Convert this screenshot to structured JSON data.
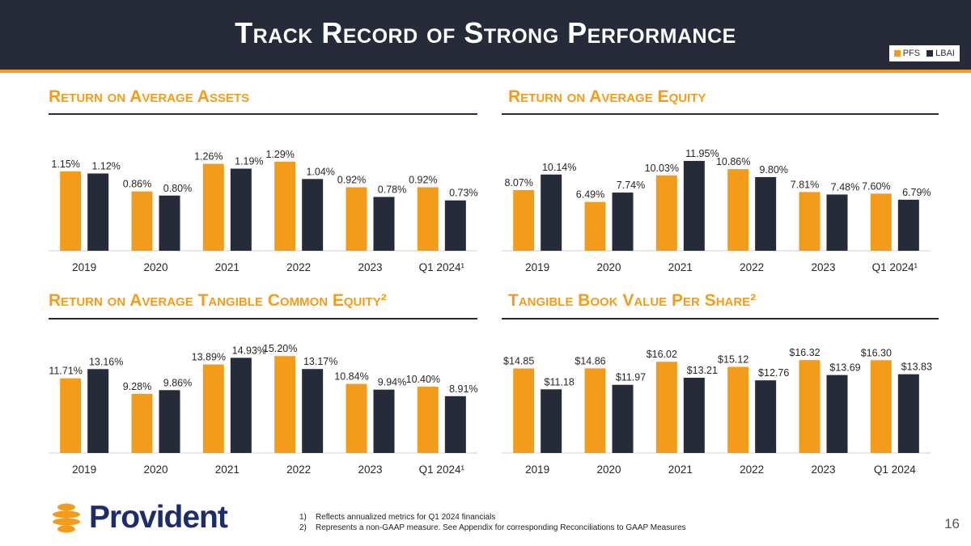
{
  "title": "Track Record of Strong Performance",
  "legend": {
    "pfs": "PFS",
    "lbai": "LBAI"
  },
  "colors": {
    "pfs": "#f39c1b",
    "lbai": "#262a39",
    "header_bg": "#262a39",
    "accent": "#f39c1b"
  },
  "brand": {
    "name": "Provident"
  },
  "footnotes": [
    {
      "num": "1)",
      "text": "Reflects annualized metrics for Q1 2024 financials"
    },
    {
      "num": "2)",
      "text": "Represents a non-GAAP measure. See Appendix for corresponding Reconciliations to GAAP Measures"
    }
  ],
  "page_number": "16",
  "chart_data": [
    {
      "type": "bar",
      "title": "Return on Average Assets",
      "categories": [
        "2019",
        "2020",
        "2021",
        "2022",
        "2023",
        "Q1 2024¹"
      ],
      "series": [
        {
          "name": "PFS",
          "values": [
            1.15,
            0.86,
            1.26,
            1.29,
            0.92,
            0.92
          ],
          "labels": [
            "1.15%",
            "0.86%",
            "1.26%",
            "1.29%",
            "0.92%",
            "0.92%"
          ]
        },
        {
          "name": "LBAI",
          "values": [
            1.12,
            0.8,
            1.19,
            1.04,
            0.78,
            0.73
          ],
          "labels": [
            "1.12%",
            "0.80%",
            "1.19%",
            "1.04%",
            "0.78%",
            "0.73%"
          ]
        }
      ],
      "ylim": [
        0,
        1.7
      ]
    },
    {
      "type": "bar",
      "title": "Return on Average Equity",
      "categories": [
        "2019",
        "2020",
        "2021",
        "2022",
        "2023",
        "Q1 2024¹"
      ],
      "series": [
        {
          "name": "PFS",
          "values": [
            8.07,
            6.49,
            10.03,
            10.86,
            7.81,
            7.6
          ],
          "labels": [
            "8.07%",
            "6.49%",
            "10.03%",
            "10.86%",
            "7.81%",
            "7.60%"
          ]
        },
        {
          "name": "LBAI",
          "values": [
            10.14,
            7.74,
            11.95,
            9.8,
            7.48,
            6.79
          ],
          "labels": [
            "10.14%",
            "7.74%",
            "11.95%",
            "9.80%",
            "7.48%",
            "6.79%"
          ]
        }
      ],
      "ylim": [
        0,
        15.6
      ]
    },
    {
      "type": "bar",
      "title": "Return on Average Tangible Common Equity²",
      "categories": [
        "2019",
        "2020",
        "2021",
        "2022",
        "2023",
        "Q1 2024¹"
      ],
      "series": [
        {
          "name": "PFS",
          "values": [
            11.71,
            9.28,
            13.89,
            15.2,
            10.84,
            10.4
          ],
          "labels": [
            "11.71%",
            "9.28%",
            "13.89%",
            "15.20%",
            "10.84%",
            "10.40%"
          ]
        },
        {
          "name": "LBAI",
          "values": [
            13.16,
            9.86,
            14.93,
            13.17,
            9.94,
            8.91
          ],
          "labels": [
            "13.16%",
            "9.86%",
            "14.93%",
            "13.17%",
            "9.94%",
            "8.91%"
          ]
        }
      ],
      "ylim": [
        0,
        18.4
      ]
    },
    {
      "type": "bar",
      "title": "Tangible Book Value Per Share²",
      "categories": [
        "2019",
        "2020",
        "2021",
        "2022",
        "2023",
        "Q1 2024"
      ],
      "series": [
        {
          "name": "PFS",
          "values": [
            14.85,
            14.86,
            16.02,
            15.12,
            16.32,
            16.3
          ],
          "labels": [
            "$14.85",
            "$14.86",
            "$16.02",
            "$15.12",
            "$16.32",
            "$16.30"
          ]
        },
        {
          "name": "LBAI",
          "values": [
            11.18,
            11.97,
            13.21,
            12.76,
            13.69,
            13.83
          ],
          "labels": [
            "$11.18",
            "$11.97",
            "$13.21",
            "$12.76",
            "$13.69",
            "$13.83"
          ]
        }
      ],
      "ylim": [
        0,
        20.6
      ]
    }
  ]
}
